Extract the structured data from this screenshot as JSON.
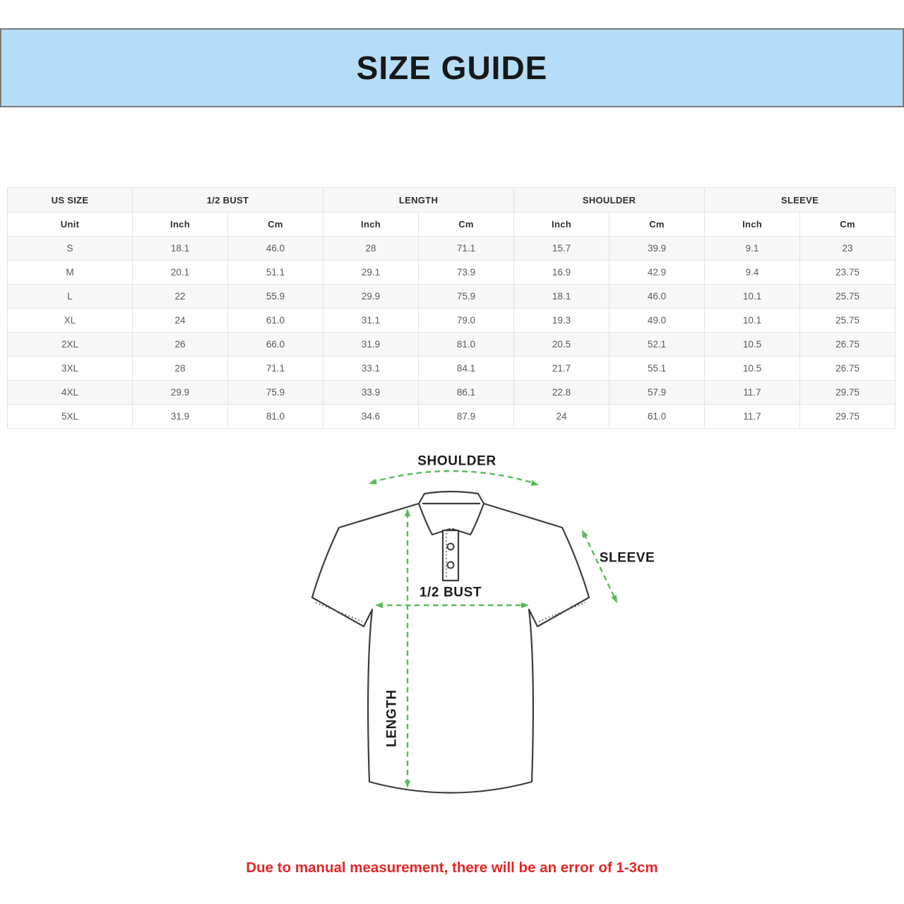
{
  "banner": {
    "title": "SIZE GUIDE"
  },
  "table": {
    "group_headers": [
      {
        "label": "US SIZE",
        "span": 1
      },
      {
        "label": "1/2 BUST",
        "span": 2
      },
      {
        "label": "LENGTH",
        "span": 2
      },
      {
        "label": "SHOULDER",
        "span": 2
      },
      {
        "label": "SLEEVE",
        "span": 2
      }
    ],
    "unit_row": [
      "Unit",
      "Inch",
      "Cm",
      "Inch",
      "Cm",
      "Inch",
      "Cm",
      "Inch",
      "Cm"
    ],
    "rows": [
      {
        "size": "S",
        "values": [
          "18.1",
          "46.0",
          "28",
          "71.1",
          "15.7",
          "39.9",
          "9.1",
          "23"
        ]
      },
      {
        "size": "M",
        "values": [
          "20.1",
          "51.1",
          "29.1",
          "73.9",
          "16.9",
          "42.9",
          "9.4",
          "23.75"
        ]
      },
      {
        "size": "L",
        "values": [
          "22",
          "55.9",
          "29.9",
          "75.9",
          "18.1",
          "46.0",
          "10.1",
          "25.75"
        ]
      },
      {
        "size": "XL",
        "values": [
          "24",
          "61.0",
          "31.1",
          "79.0",
          "19.3",
          "49.0",
          "10.1",
          "25.75"
        ]
      },
      {
        "size": "2XL",
        "values": [
          "26",
          "66.0",
          "31.9",
          "81.0",
          "20.5",
          "52.1",
          "10.5",
          "26.75"
        ]
      },
      {
        "size": "3XL",
        "values": [
          "28",
          "71.1",
          "33.1",
          "84.1",
          "21.7",
          "55.1",
          "10.5",
          "26.75"
        ]
      },
      {
        "size": "4XL",
        "values": [
          "29.9",
          "75.9",
          "33.9",
          "86.1",
          "22.8",
          "57.9",
          "11.7",
          "29.75"
        ]
      },
      {
        "size": "5XL",
        "values": [
          "31.9",
          "81.0",
          "34.6",
          "87.9",
          "24",
          "61.0",
          "11.7",
          "29.75"
        ]
      }
    ]
  },
  "diagram": {
    "labels": {
      "shoulder": "SHOULDER",
      "sleeve": "SLEEVE",
      "bust": "1/2 BUST",
      "length": "LENGTH"
    }
  },
  "note": {
    "text": "Due to manual measurement, there will be an error of 1-3cm"
  },
  "colors": {
    "banner_bg": "#b5ddf8",
    "banner_border": "#7b7b7b",
    "stripe": "#f7f7f7",
    "table_border": "#e3e3e3",
    "arrow_green": "#58ba58",
    "outline_dark": "#3d3d3d",
    "note_color": "#e32626"
  }
}
